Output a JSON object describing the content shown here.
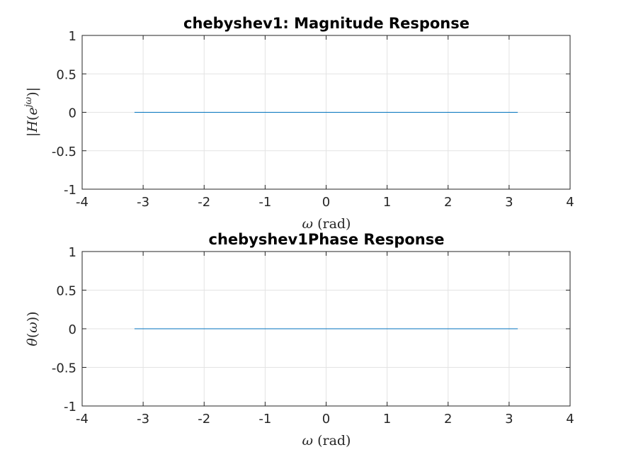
{
  "chart_data": [
    {
      "type": "line",
      "title": "chebyshev1: Magnitude Response",
      "xlabel": "ω (rad)",
      "ylabel": "|H(e^jω)|",
      "xlim": [
        -4,
        4
      ],
      "ylim": [
        -1,
        1
      ],
      "xticks": [
        "-4",
        "-3",
        "-2",
        "-1",
        "0",
        "1",
        "2",
        "3",
        "4"
      ],
      "yticks": [
        "1",
        "0.5",
        "0",
        "-0.5",
        "-1"
      ],
      "grid": true,
      "series": [
        {
          "x": [
            -3.1416,
            3.1416
          ],
          "values": [
            0,
            0
          ],
          "color": "#0072bd"
        }
      ]
    },
    {
      "type": "line",
      "title": "chebyshev1Phase Response",
      "xlabel": "ω (rad)",
      "ylabel": "θ(ω))",
      "xlim": [
        -4,
        4
      ],
      "ylim": [
        -1,
        1
      ],
      "xticks": [
        "-4",
        "-3",
        "-2",
        "-1",
        "0",
        "1",
        "2",
        "3",
        "4"
      ],
      "yticks": [
        "1",
        "0.5",
        "0",
        "-0.5",
        "-1"
      ],
      "grid": true,
      "series": [
        {
          "x": [
            -3.1416,
            3.1416
          ],
          "values": [
            0,
            0
          ],
          "color": "#0072bd"
        }
      ]
    }
  ]
}
